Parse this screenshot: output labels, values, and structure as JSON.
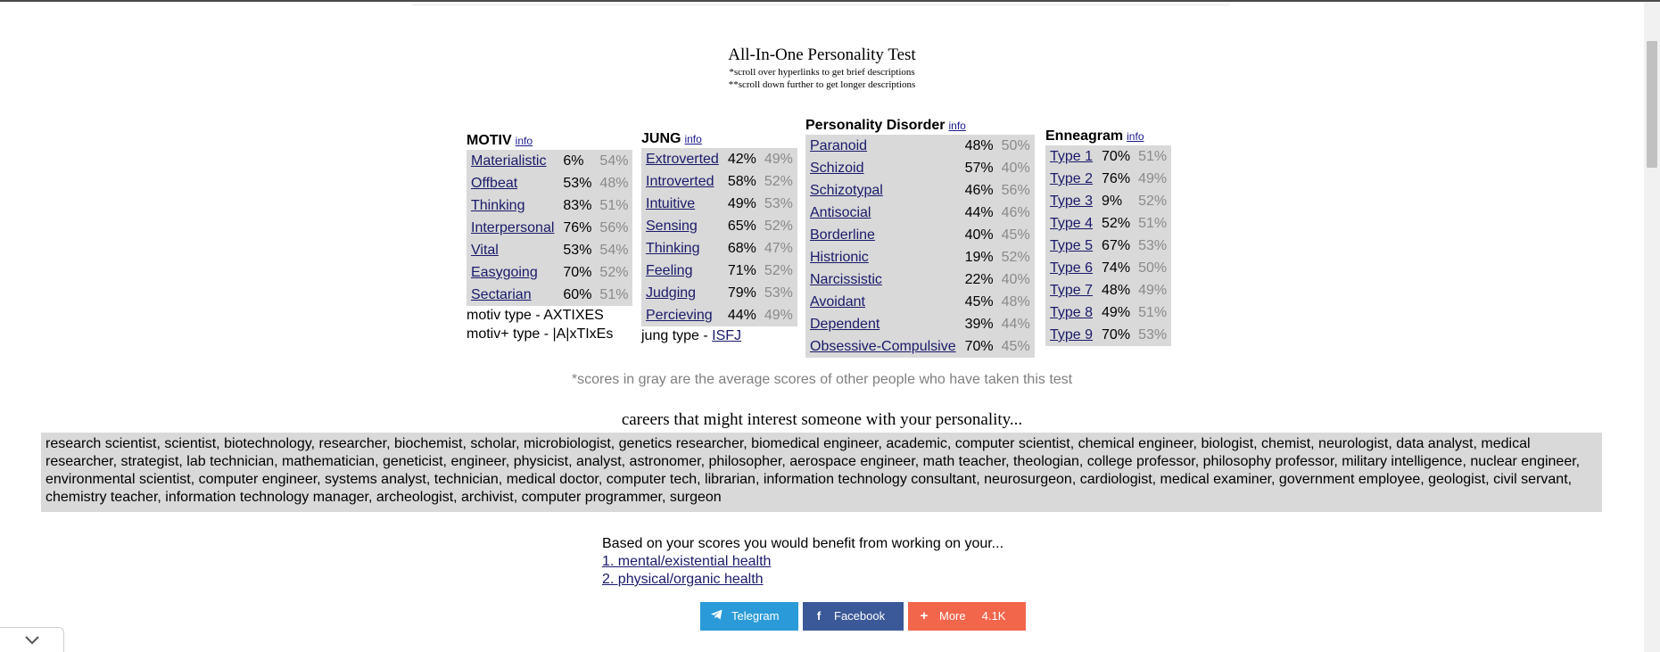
{
  "title": "All-In-One Personality Test",
  "notes": [
    "*scroll over hyperlinks to get brief descriptions",
    "**scroll down further to get longer descriptions"
  ],
  "info_label": "info",
  "motiv": {
    "heading": "MOTIV",
    "rows": [
      {
        "name": "Materialistic",
        "pct": "6%",
        "avg": "54%"
      },
      {
        "name": "Offbeat",
        "pct": "53%",
        "avg": "48%"
      },
      {
        "name": "Thinking",
        "pct": "83%",
        "avg": "51%"
      },
      {
        "name": "Interpersonal",
        "pct": "76%",
        "avg": "56%"
      },
      {
        "name": "Vital",
        "pct": "53%",
        "avg": "54%"
      },
      {
        "name": "Easygoing",
        "pct": "70%",
        "avg": "52%"
      },
      {
        "name": "Sectarian",
        "pct": "60%",
        "avg": "51%"
      }
    ],
    "type_line": "motiv type - AXTIXES",
    "type_plus_line": "motiv+ type - |A|xTIxEs"
  },
  "jung": {
    "heading": "JUNG",
    "rows": [
      {
        "name": "Extroverted",
        "pct": "42%",
        "avg": "49%"
      },
      {
        "name": "Introverted",
        "pct": "58%",
        "avg": "52%"
      },
      {
        "name": "Intuitive",
        "pct": "49%",
        "avg": "53%"
      },
      {
        "name": "Sensing",
        "pct": "65%",
        "avg": "52%"
      },
      {
        "name": "Thinking",
        "pct": "68%",
        "avg": "47%"
      },
      {
        "name": "Feeling",
        "pct": "71%",
        "avg": "52%"
      },
      {
        "name": "Judging",
        "pct": "79%",
        "avg": "53%"
      },
      {
        "name": "Percieving",
        "pct": "44%",
        "avg": "49%"
      }
    ],
    "type_prefix": "jung type - ",
    "type_value": "ISFJ"
  },
  "disorder": {
    "heading": "Personality Disorder",
    "rows": [
      {
        "name": "Paranoid",
        "pct": "48%",
        "avg": "50%"
      },
      {
        "name": "Schizoid",
        "pct": "57%",
        "avg": "40%"
      },
      {
        "name": "Schizotypal",
        "pct": "46%",
        "avg": "56%"
      },
      {
        "name": "Antisocial",
        "pct": "44%",
        "avg": "46%"
      },
      {
        "name": "Borderline",
        "pct": "40%",
        "avg": "45%"
      },
      {
        "name": "Histrionic",
        "pct": "19%",
        "avg": "52%"
      },
      {
        "name": "Narcissistic",
        "pct": "22%",
        "avg": "40%"
      },
      {
        "name": "Avoidant",
        "pct": "45%",
        "avg": "48%"
      },
      {
        "name": "Dependent",
        "pct": "39%",
        "avg": "44%"
      },
      {
        "name": "Obsessive-Compulsive",
        "pct": "70%",
        "avg": "45%"
      }
    ]
  },
  "enneagram": {
    "heading": "Enneagram",
    "rows": [
      {
        "name": "Type 1",
        "pct": "70%",
        "avg": "51%"
      },
      {
        "name": "Type 2",
        "pct": "76%",
        "avg": "49%"
      },
      {
        "name": "Type 3",
        "pct": "9%",
        "avg": "52%"
      },
      {
        "name": "Type 4",
        "pct": "52%",
        "avg": "51%"
      },
      {
        "name": "Type 5",
        "pct": "67%",
        "avg": "53%"
      },
      {
        "name": "Type 6",
        "pct": "74%",
        "avg": "50%"
      },
      {
        "name": "Type 7",
        "pct": "48%",
        "avg": "49%"
      },
      {
        "name": "Type 8",
        "pct": "49%",
        "avg": "51%"
      },
      {
        "name": "Type 9",
        "pct": "70%",
        "avg": "53%"
      }
    ]
  },
  "gray_note": "*scores in gray are the average scores of other people who have taken this test",
  "careers_title": "careers that might interest someone with your personality...",
  "careers_text": "research scientist, scientist, biotechnology, researcher, biochemist, scholar, microbiologist, genetics researcher, biomedical engineer, academic, computer scientist, chemical engineer, biologist, chemist, neurologist, data analyst, medical researcher, strategist, lab technician, mathematician, geneticist, engineer, physicist, analyst, astronomer, philosopher, aerospace engineer, math teacher, theologian, college professor, philosophy professor, military intelligence, nuclear engineer, environmental scientist, computer engineer, systems analyst, technician, medical doctor, computer tech, librarian, information technology consultant, neurosurgeon, cardiologist, medical examiner, government employee, geologist, civil servant, chemistry teacher, information technology manager, archeologist, archivist, computer programmer, surgeon",
  "benefit": {
    "intro": "Based on your scores you would benefit from working on your...",
    "items": [
      "1. mental/existential health",
      "2. physical/organic health"
    ]
  },
  "share": {
    "telegram": "Telegram",
    "facebook": "Facebook",
    "more": "More",
    "count": "4.1K"
  },
  "colors": {
    "telegram": "#2a9bd8",
    "facebook": "#3b5998",
    "more": "#f2664c",
    "table_bg": "#d9d9d9",
    "link": "#1a1a6b"
  }
}
